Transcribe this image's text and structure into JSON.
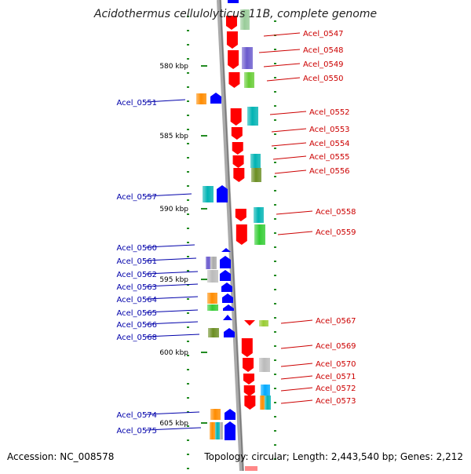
{
  "title": "Acidothermus cellulolyticus 11B, complete genome",
  "footer": {
    "accession": "Accession: NC_008578",
    "topology": "Topology: circular; Length: 2,443,540 bp; Genes: 2,212"
  },
  "colors": {
    "forward": "#ff0000",
    "reverse": "#0000ff",
    "backbone": "#999999",
    "tick": "#228b22",
    "label_forward": "#cc0000",
    "label_reverse": "#0000aa"
  },
  "kbp_ticks": [
    "580 kbp",
    "585 kbp",
    "590 kbp",
    "595 kbp",
    "600 kbp",
    "605 kbp"
  ],
  "right_labels": [
    "Acel_0547",
    "Acel_0548",
    "Acel_0549",
    "Acel_0550",
    "Acel_0552",
    "Acel_0553",
    "Acel_0554",
    "Acel_0555",
    "Acel_0556",
    "Acel_0558",
    "Acel_0559",
    "Acel_0567",
    "Acel_0569",
    "Acel_0570",
    "Acel_0571",
    "Acel_0572",
    "Acel_0573"
  ],
  "left_labels": [
    "Acel_0551",
    "Acel_0557",
    "Acel_0560",
    "Acel_0561",
    "Acel_0562",
    "Acel_0563",
    "Acel_0564",
    "Acel_0565",
    "Acel_0566",
    "Acel_0568",
    "Acel_0574",
    "Acel_0575"
  ]
}
